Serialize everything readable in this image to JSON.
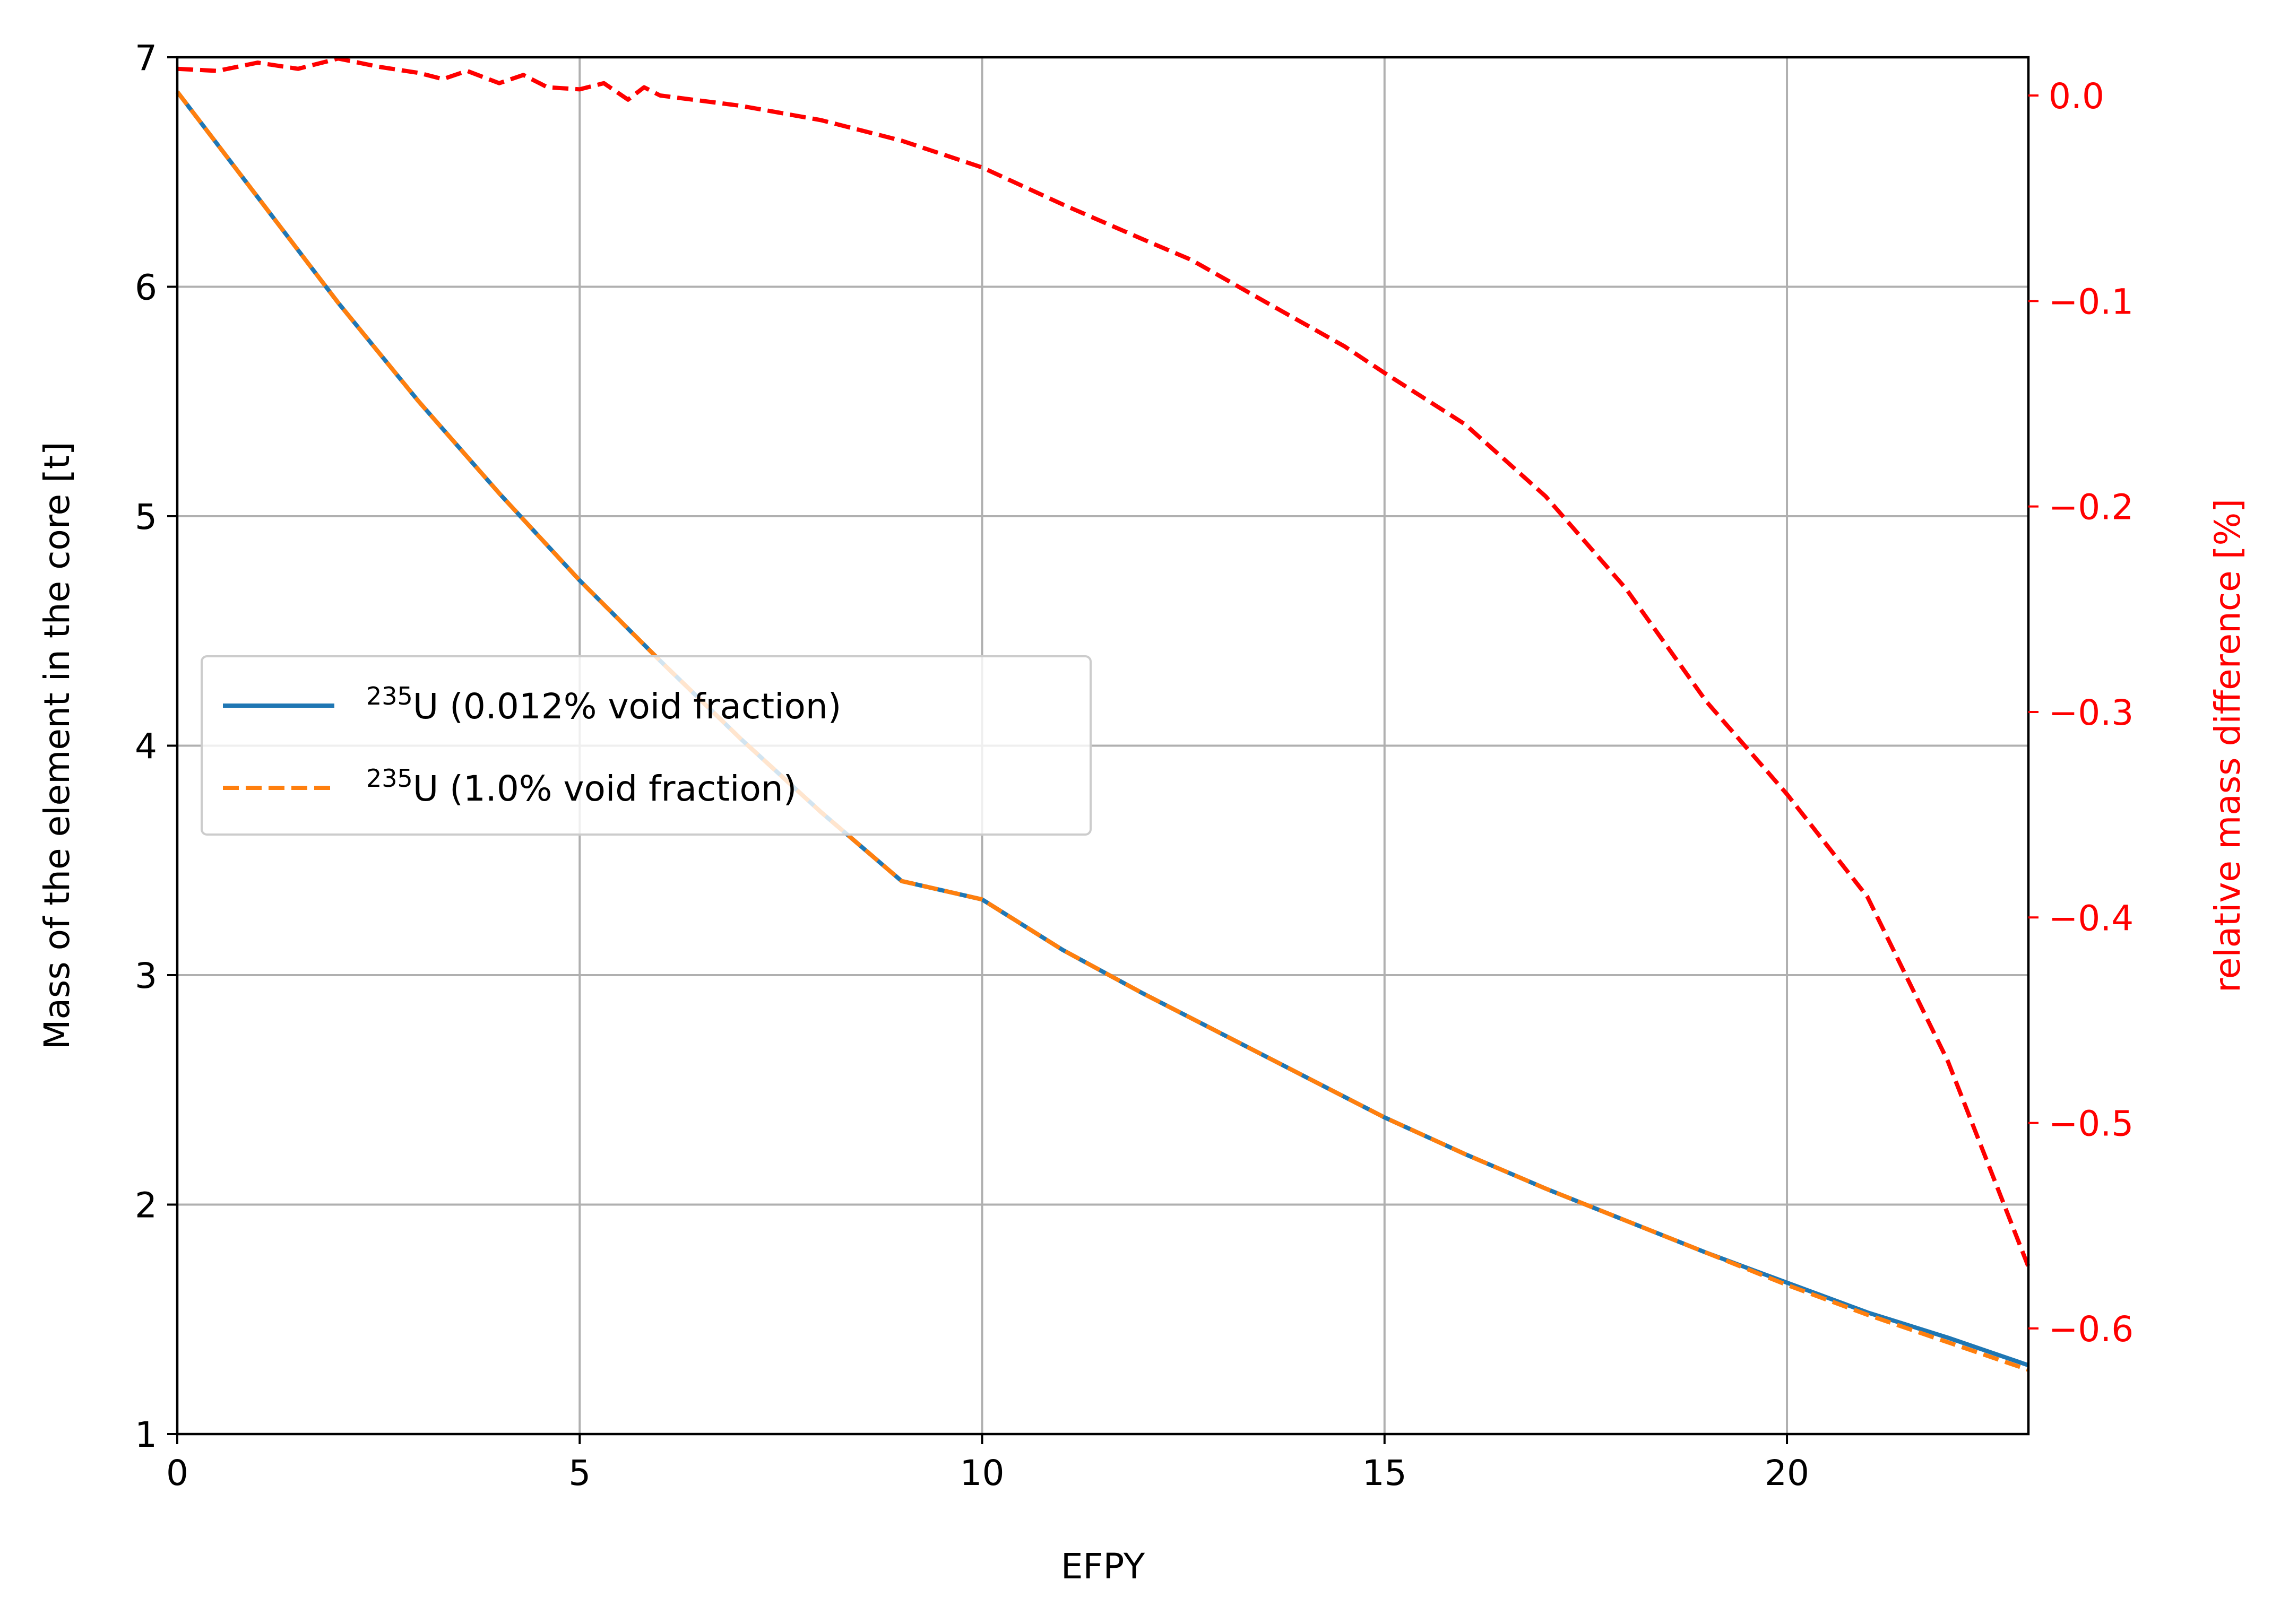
{
  "chart_data": {
    "type": "line",
    "xlabel": "EFPY",
    "ylabel": "Mass of the element in the core [t]",
    "y2label": "relative mass difference [%]",
    "xlim": [
      0,
      23
    ],
    "ylim": [
      1,
      7
    ],
    "y2lim": [
      -0.6514,
      0.0186
    ],
    "grid": true,
    "legend_placement": "center-left",
    "x_ticks": [
      0,
      5,
      10,
      15,
      20
    ],
    "x_tick_labels": [
      "0",
      "5",
      "10",
      "15",
      "20"
    ],
    "y_ticks": [
      1,
      2,
      3,
      4,
      5,
      6,
      7
    ],
    "y_tick_labels": [
      "1",
      "2",
      "3",
      "4",
      "5",
      "6",
      "7"
    ],
    "y2_ticks": [
      0.0,
      -0.1,
      -0.2,
      -0.3,
      -0.4,
      -0.5,
      -0.6
    ],
    "y2_tick_labels": [
      "0.0",
      "−0.1",
      "−0.2",
      "−0.3",
      "−0.4",
      "−0.5",
      "−0.6"
    ],
    "colors": {
      "series1": "#1f77b4",
      "series2": "#ff7f0e",
      "difference": "#ff0000",
      "grid": "#b0b0b0",
      "axis": "#000000"
    },
    "series": [
      {
        "name": "235U (0.012% void fraction)",
        "legend_sup": "235",
        "legend_text": "U (0.012% void fraction)",
        "axis": "left",
        "style": "solid",
        "x": [
          0,
          1,
          2,
          3,
          4,
          5,
          6,
          7,
          8,
          9,
          10,
          11,
          12,
          13,
          14,
          15,
          16,
          17,
          18,
          19,
          20,
          21,
          22,
          23
        ],
        "y": [
          6.85,
          6.39,
          5.93,
          5.5,
          5.1,
          4.72,
          4.37,
          4.03,
          3.71,
          3.41,
          3.33,
          3.11,
          2.92,
          2.74,
          2.56,
          2.38,
          2.22,
          2.07,
          1.93,
          1.79,
          1.66,
          1.53,
          1.42,
          1.3
        ]
      },
      {
        "name": "235U (1.0% void fraction)",
        "legend_sup": "235",
        "legend_text": "U (1.0% void fraction)",
        "axis": "left",
        "style": "dashed",
        "x": [
          0,
          1,
          2,
          3,
          4,
          5,
          6,
          7,
          8,
          9,
          10,
          11,
          12,
          13,
          14,
          15,
          16,
          17,
          18,
          19,
          20,
          21,
          22,
          23
        ],
        "y": [
          6.85,
          6.39,
          5.93,
          5.5,
          5.1,
          4.72,
          4.37,
          4.03,
          3.71,
          3.41,
          3.33,
          3.11,
          2.92,
          2.74,
          2.56,
          2.38,
          2.22,
          2.07,
          1.93,
          1.79,
          1.65,
          1.52,
          1.4,
          1.28
        ]
      },
      {
        "name": "relative mass difference",
        "axis": "right",
        "style": "dashed",
        "x": [
          0,
          0.5,
          1.0,
          1.5,
          2.0,
          2.5,
          3.0,
          3.3,
          3.6,
          4.0,
          4.3,
          4.6,
          5.0,
          5.3,
          5.6,
          5.8,
          6.0,
          7.0,
          8.0,
          9.0,
          10.0,
          11.0,
          12.0,
          12.6,
          13.5,
          14.5,
          15.0,
          16.0,
          17.0,
          18.0,
          19.0,
          20.0,
          21.0,
          22.0,
          23.0
        ],
        "y": [
          0.013,
          0.012,
          0.016,
          0.013,
          0.018,
          0.014,
          0.011,
          0.008,
          0.012,
          0.006,
          0.01,
          0.004,
          0.003,
          0.006,
          -0.002,
          0.004,
          0.0,
          -0.005,
          -0.012,
          -0.022,
          -0.035,
          -0.053,
          -0.07,
          -0.08,
          -0.1,
          -0.122,
          -0.135,
          -0.16,
          -0.195,
          -0.24,
          -0.295,
          -0.34,
          -0.39,
          -0.47,
          -0.57
        ]
      }
    ]
  }
}
